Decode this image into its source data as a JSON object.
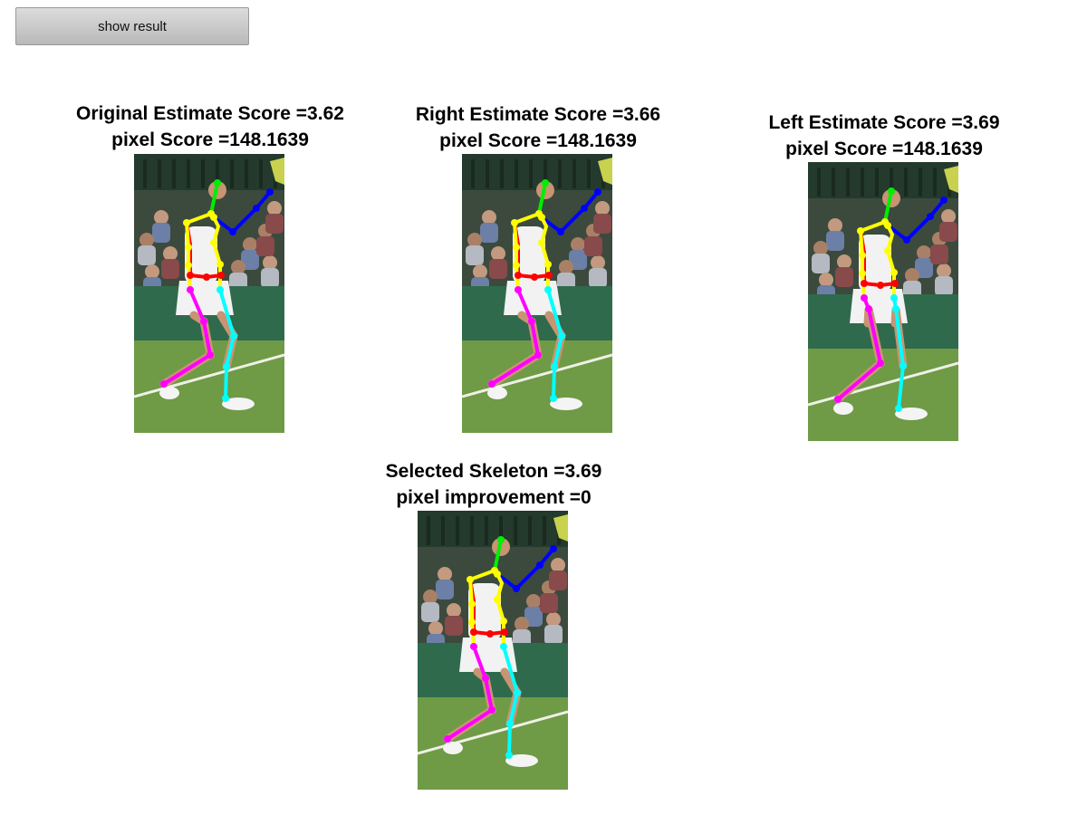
{
  "toolbar": {
    "show_result_label": "show result"
  },
  "panels": [
    {
      "title": "Original Estimate Score =3.62",
      "subtitle": "pixel Score =148.1639"
    },
    {
      "title": "Right Estimate Score =3.66",
      "subtitle": "pixel Score =148.1639"
    },
    {
      "title": "Left Estimate Score =3.69",
      "subtitle": "pixel Score =148.1639"
    },
    {
      "title": "Selected Skeleton =3.69",
      "subtitle": "pixel improvement =0"
    }
  ],
  "skeleton_colors": {
    "head": "#00ee00",
    "right_arm": "#0000ff",
    "torso": "#ffff00",
    "left_arm": "#ff0000",
    "left_leg": "#ff00ff",
    "right_leg": "#00ffff"
  },
  "scene_colors": {
    "stands": "#3c4a3e",
    "fence": "#2f6a4c",
    "grass": "#6f9a46",
    "court_line": "#eef1e6",
    "skin": "#c89472",
    "dress": "#f2f2f2"
  }
}
